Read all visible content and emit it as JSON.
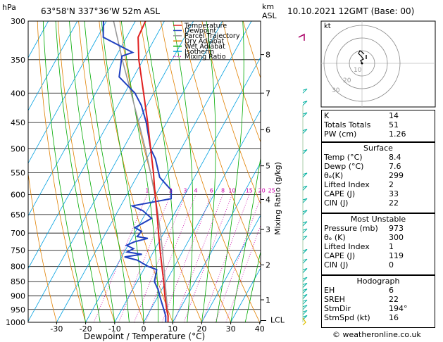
{
  "header": {
    "hpa_label": "hPa",
    "location": "63°58'N  337°36'W  52m  ASL",
    "km_label": "km",
    "asl_label": "ASL",
    "date": "10.10.2021  12GMT  (Base: 00)"
  },
  "chart_data": {
    "type": "line",
    "title": "",
    "xlabel": "Dewpoint / Temperature (°C)",
    "ylabel": "hPa",
    "mixing_ratio_label": "Mixing Ratio (g/kg)",
    "xlim": [
      -35,
      40
    ],
    "ylim": [
      1000,
      300
    ],
    "x_ticks": [
      "-30",
      "-20",
      "-10",
      "0",
      "10",
      "20",
      "30",
      "40"
    ],
    "x_tick_values": [
      -30,
      -20,
      -10,
      0,
      10,
      20,
      30,
      40
    ],
    "pressure_ticks": [
      300,
      350,
      400,
      450,
      500,
      550,
      600,
      650,
      700,
      750,
      800,
      850,
      900,
      950,
      1000
    ],
    "km_ticks": [
      {
        "km": "1",
        "p": 914
      },
      {
        "km": "2",
        "p": 795
      },
      {
        "km": "3",
        "p": 690
      },
      {
        "km": "4",
        "p": 612
      },
      {
        "km": "5",
        "p": 535
      },
      {
        "km": "6",
        "p": 463
      },
      {
        "km": "7",
        "p": 400
      },
      {
        "km": "8",
        "p": 343
      }
    ],
    "lcl_label": "LCL",
    "lcl_pressure": 993,
    "mixing_ratio_labels": [
      "1",
      "2",
      "3",
      "4",
      "6",
      "8",
      "10",
      "15",
      "20",
      "25"
    ],
    "mixing_ratio_values": [
      1,
      2,
      3,
      4,
      6,
      8,
      10,
      15,
      20,
      25
    ],
    "legend": {
      "position": "top-left",
      "items": [
        {
          "name": "Temperature",
          "color": "#e02020",
          "style": "solid"
        },
        {
          "name": "Dewpoint",
          "color": "#2040c0",
          "style": "solid"
        },
        {
          "name": "Parcel Trajectory",
          "color": "#999999",
          "style": "solid"
        },
        {
          "name": "Dry Adiabat",
          "color": "#e08000",
          "style": "solid"
        },
        {
          "name": "Wet Adiabat",
          "color": "#00aa00",
          "style": "solid"
        },
        {
          "name": "Isotherm",
          "color": "#00a0e0",
          "style": "solid"
        },
        {
          "name": "Mixing Ratio",
          "color": "#cc00aa",
          "style": "dotted"
        }
      ]
    },
    "series": [
      {
        "name": "Temperature",
        "color": "#e02020",
        "points": [
          [
            1000,
            8.4
          ],
          [
            975,
            7.2
          ],
          [
            950,
            5.5
          ],
          [
            900,
            2.3
          ],
          [
            850,
            -0.8
          ],
          [
            800,
            -4.3
          ],
          [
            750,
            -8.0
          ],
          [
            700,
            -11.8
          ],
          [
            650,
            -15.8
          ],
          [
            600,
            -20.3
          ],
          [
            550,
            -25.0
          ],
          [
            500,
            -30.5
          ],
          [
            450,
            -36.5
          ],
          [
            400,
            -43.5
          ],
          [
            350,
            -51.5
          ],
          [
            320,
            -56.0
          ],
          [
            300,
            -56.5
          ]
        ]
      },
      {
        "name": "Dewpoint",
        "color": "#2040c0",
        "points": [
          [
            1000,
            7.6
          ],
          [
            975,
            6.4
          ],
          [
            950,
            4.5
          ],
          [
            900,
            0.5
          ],
          [
            880,
            -1.0
          ],
          [
            850,
            -4.0
          ],
          [
            810,
            -5.5
          ],
          [
            800,
            -9.0
          ],
          [
            780,
            -14.0
          ],
          [
            770,
            -19.0
          ],
          [
            762,
            -13.5
          ],
          [
            755,
            -19.0
          ],
          [
            745,
            -17.5
          ],
          [
            735,
            -20.5
          ],
          [
            725,
            -18.5
          ],
          [
            715,
            -14.5
          ],
          [
            710,
            -18.5
          ],
          [
            695,
            -18.0
          ],
          [
            685,
            -21.0
          ],
          [
            660,
            -17.0
          ],
          [
            640,
            -21.5
          ],
          [
            628,
            -26.0
          ],
          [
            610,
            -14.0
          ],
          [
            590,
            -15.5
          ],
          [
            560,
            -22.0
          ],
          [
            520,
            -27.0
          ],
          [
            500,
            -30.5
          ],
          [
            450,
            -37.0
          ],
          [
            420,
            -42.0
          ],
          [
            400,
            -46.5
          ],
          [
            375,
            -55.0
          ],
          [
            345,
            -58.0
          ],
          [
            340,
            -55.0
          ],
          [
            320,
            -68.0
          ],
          [
            300,
            -71.0
          ]
        ]
      },
      {
        "name": "Parcel Trajectory",
        "color": "#999999",
        "points": [
          [
            1000,
            8.4
          ],
          [
            975,
            7.3
          ],
          [
            950,
            5.8
          ],
          [
            900,
            2.8
          ],
          [
            850,
            -0.3
          ],
          [
            800,
            -3.6
          ],
          [
            750,
            -7.2
          ],
          [
            700,
            -11.1
          ],
          [
            650,
            -15.5
          ],
          [
            600,
            -20.4
          ],
          [
            550,
            -26.0
          ],
          [
            500,
            -32.3
          ],
          [
            450,
            -39.6
          ],
          [
            400,
            -47.8
          ],
          [
            350,
            -57.2
          ],
          [
            300,
            -67.5
          ]
        ]
      }
    ]
  },
  "hodograph": {
    "label": "kt",
    "ring_labels": [
      "10",
      "20",
      "30"
    ]
  },
  "indices": {
    "rows": [
      {
        "label": "K",
        "value": "14"
      },
      {
        "label": "Totals Totals",
        "value": "51"
      },
      {
        "label": "PW (cm)",
        "value": "1.26"
      }
    ]
  },
  "surface": {
    "title": "Surface",
    "rows": [
      {
        "label": "Temp (°C)",
        "value": "8.4"
      },
      {
        "label": "Dewp (°C)",
        "value": "7.6"
      },
      {
        "label": "θₑ(K)",
        "value": "299"
      },
      {
        "label": "Lifted Index",
        "value": "2"
      },
      {
        "label": "CAPE (J)",
        "value": "33"
      },
      {
        "label": "CIN (J)",
        "value": "22"
      }
    ]
  },
  "most_unstable": {
    "title": "Most Unstable",
    "rows": [
      {
        "label": "Pressure (mb)",
        "value": "973"
      },
      {
        "label": "θₑ (K)",
        "value": "300"
      },
      {
        "label": "Lifted Index",
        "value": "1"
      },
      {
        "label": "CAPE (J)",
        "value": "119"
      },
      {
        "label": "CIN (J)",
        "value": "0"
      }
    ]
  },
  "hodograph_table": {
    "title": "Hodograph",
    "rows": [
      {
        "label": "EH",
        "value": "6"
      },
      {
        "label": "SREH",
        "value": "22"
      },
      {
        "label": "StmDir",
        "value": "194°"
      },
      {
        "label": "StmSpd (kt)",
        "value": "16"
      }
    ]
  },
  "footer": {
    "copyright": "© weatheronline.co.uk"
  }
}
